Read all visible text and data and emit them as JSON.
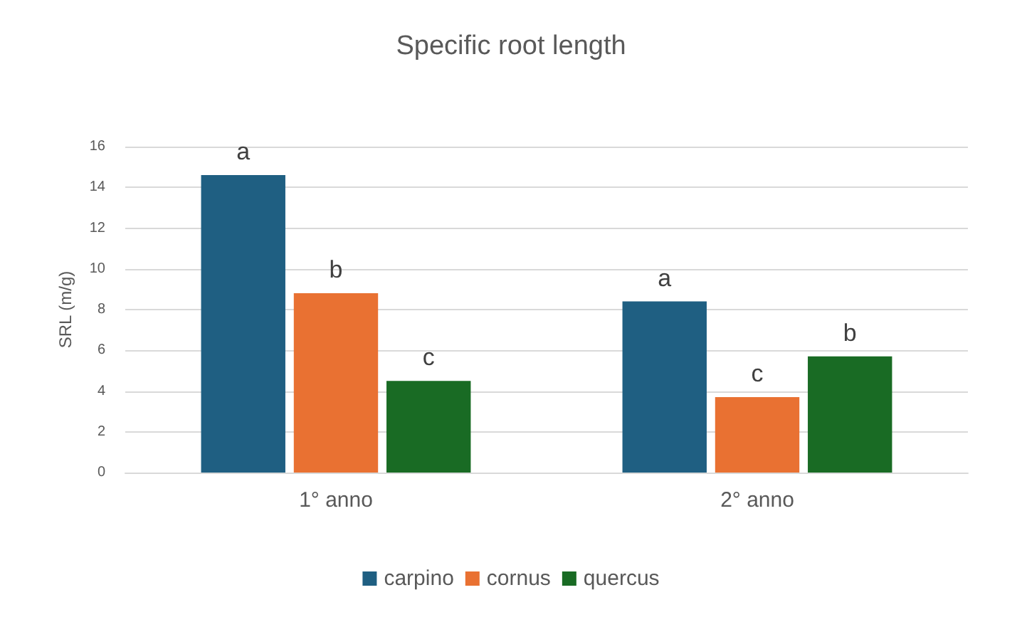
{
  "chart_data": {
    "type": "bar",
    "title": "Specific root length",
    "ylabel": "SRL (m/g)",
    "categories": [
      "1° anno",
      "2° anno"
    ],
    "series": [
      {
        "name": "carpino",
        "color": "#1f5f82",
        "values": [
          14.6,
          8.4
        ],
        "value_labels": [
          "a",
          "a"
        ]
      },
      {
        "name": "cornus",
        "color": "#e97132",
        "values": [
          8.8,
          3.7
        ],
        "value_labels": [
          "b",
          "c"
        ]
      },
      {
        "name": "quercus",
        "color": "#196b24",
        "values": [
          4.5,
          5.7
        ],
        "value_labels": [
          "c",
          "b"
        ]
      }
    ],
    "ylim": [
      0,
      16
    ],
    "yticks": [
      0,
      2,
      4,
      6,
      8,
      10,
      12,
      14,
      16
    ],
    "grid": "y",
    "legend": "bottom"
  }
}
